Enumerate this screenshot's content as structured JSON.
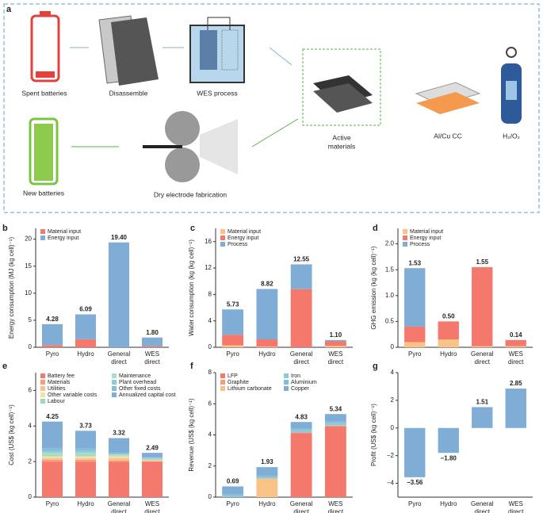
{
  "diagram": {
    "panel": "a",
    "spent": "Spent batteries",
    "disassemble": "Disassemble",
    "wes": "WES process",
    "active": [
      "Active",
      "materials"
    ],
    "cc": "Al/Cu CC",
    "gas": "H₂/O₂",
    "new": "New batteries",
    "dry": "Dry electrode fabrication"
  },
  "chart_data": [
    {
      "type": "bar",
      "stacked": true,
      "panel": "b",
      "ylabel": "Energy consumption (MJ (kg cell)⁻¹)",
      "categories": [
        "Pyro",
        "Hydro",
        "General direct",
        "WES direct"
      ],
      "ylim": [
        0,
        22
      ],
      "yticks": [
        0,
        5,
        10,
        15,
        20
      ],
      "series": [
        {
          "name": "Material input",
          "color": "#f4786b",
          "values": [
            0.4,
            1.5,
            0,
            0.2
          ]
        },
        {
          "name": "Energy input",
          "color": "#7fadd6",
          "values": [
            3.88,
            4.59,
            19.4,
            1.6
          ]
        }
      ],
      "totals": [
        4.28,
        6.09,
        19.4,
        1.8
      ],
      "total_labels": [
        "4.28",
        "6.09",
        "19.40",
        "1.80"
      ]
    },
    {
      "type": "bar",
      "stacked": true,
      "panel": "c",
      "ylabel": "Water consumption (kg (kg cell)⁻¹)",
      "categories": [
        "Pyro",
        "Hydro",
        "General direct",
        "WES direct"
      ],
      "ylim": [
        0,
        18
      ],
      "yticks": [
        0,
        4,
        8,
        12,
        16
      ],
      "series": [
        {
          "name": "Material input",
          "color": "#f9c287",
          "values": [
            0.3,
            0.1,
            0,
            0.2
          ]
        },
        {
          "name": "Energy input",
          "color": "#f4786b",
          "values": [
            1.6,
            1.1,
            8.8,
            0.7
          ]
        },
        {
          "name": "Process",
          "color": "#7fadd6",
          "values": [
            3.83,
            7.62,
            3.75,
            0.2
          ]
        }
      ],
      "totals": [
        5.73,
        8.82,
        12.55,
        1.1
      ],
      "total_labels": [
        "5.73",
        "8.82",
        "12.55",
        "1.10"
      ]
    },
    {
      "type": "bar",
      "stacked": true,
      "panel": "d",
      "ylabel": "GHG emission (kg (kg cell)⁻¹)",
      "categories": [
        "Pyro",
        "Hydro",
        "General direct",
        "WES direct"
      ],
      "ylim": [
        0,
        2.3
      ],
      "yticks": [
        0,
        0.5,
        {
          "value": 1,
          "label": "1.0"
        },
        1.5,
        {
          "value": 2,
          "label": "2.0"
        }
      ],
      "series": [
        {
          "name": "Material input",
          "color": "#f9c287",
          "values": [
            0.1,
            0.15,
            0.02,
            0.02
          ]
        },
        {
          "name": "Energy input",
          "color": "#f4786b",
          "values": [
            0.3,
            0.35,
            1.53,
            0.12
          ]
        },
        {
          "name": "Process",
          "color": "#7fadd6",
          "values": [
            1.13,
            0,
            0,
            0
          ]
        }
      ],
      "totals": [
        1.53,
        0.5,
        1.55,
        0.14
      ],
      "total_labels": [
        "1.53",
        "0.50",
        "1.55",
        "0.14"
      ]
    },
    {
      "type": "bar",
      "stacked": true,
      "panel": "e",
      "ylabel": "Cost (US$ (kg cell)⁻¹)",
      "categories": [
        "Pyro",
        "Hydro",
        "General direct",
        "WES direct"
      ],
      "ylim": [
        0,
        7
      ],
      "yticks": [
        0,
        2,
        4,
        6
      ],
      "series": [
        {
          "name": "Battery fee",
          "color": "#f4786b",
          "values": [
            2.0,
            2.0,
            2.0,
            2.0
          ]
        },
        {
          "name": "Materials",
          "color": "#f79c7e",
          "values": [
            0.1,
            0.1,
            0.05,
            0.02
          ]
        },
        {
          "name": "Utilities",
          "color": "#f9c287",
          "values": [
            0.1,
            0.1,
            0.15,
            0.05
          ]
        },
        {
          "name": "Other variable costs",
          "color": "#f3e2a6",
          "values": [
            0.1,
            0.1,
            0.1,
            0.02
          ]
        },
        {
          "name": "Labour",
          "color": "#9fd8c0",
          "values": [
            0.1,
            0.1,
            0.05,
            0.05
          ]
        },
        {
          "name": "Maintenance",
          "color": "#a9dcd3",
          "values": [
            0.1,
            0.1,
            0.05,
            0.03
          ]
        },
        {
          "name": "Plant overhead",
          "color": "#8dccd6",
          "values": [
            0.1,
            0.1,
            0.05,
            0.03
          ]
        },
        {
          "name": "Other fixed costs",
          "color": "#84bcd9",
          "values": [
            0.15,
            0.13,
            0.07,
            0.04
          ]
        },
        {
          "name": "Annualized capital cost",
          "color": "#7fadd6",
          "values": [
            1.5,
            1.0,
            0.8,
            0.25
          ]
        }
      ],
      "totals": [
        4.25,
        3.73,
        3.32,
        2.49
      ],
      "total_labels": [
        "4.25",
        "3.73",
        "3.32",
        "2.49"
      ]
    },
    {
      "type": "bar",
      "stacked": true,
      "panel": "f",
      "ylabel": "Revenue (US$ (kg cell)⁻¹)",
      "categories": [
        "Pyro",
        "Hydro",
        "General direct",
        "WES direct"
      ],
      "ylim": [
        0,
        8
      ],
      "yticks": [
        0,
        2,
        4,
        6,
        8
      ],
      "series": [
        {
          "name": "LFP",
          "color": "#f4786b",
          "values": [
            0,
            0,
            4.1,
            4.55
          ]
        },
        {
          "name": "Graphite",
          "color": "#f79c7e",
          "values": [
            0,
            0,
            0.05,
            0.05
          ]
        },
        {
          "name": "Lithium carbonate",
          "color": "#f9c287",
          "values": [
            0,
            1.2,
            0,
            0
          ]
        },
        {
          "name": "Iron",
          "color": "#8dccd6",
          "values": [
            0.1,
            0.1,
            0.15,
            0.15
          ]
        },
        {
          "name": "Aluminium",
          "color": "#84bcd9",
          "values": [
            0.1,
            0.1,
            0.1,
            0.1
          ]
        },
        {
          "name": "Copper",
          "color": "#7fadd6",
          "values": [
            0.49,
            0.53,
            0.43,
            0.49
          ]
        }
      ],
      "totals": [
        0.69,
        1.93,
        4.83,
        5.34
      ],
      "total_labels": [
        "0.69",
        "1.93",
        "4.83",
        "5.34"
      ]
    },
    {
      "type": "bar",
      "panel": "g",
      "ylabel": "Profit (US$ (kg cell)⁻¹)",
      "categories": [
        "Pyro",
        "Hydro",
        "General direct",
        "WES direct"
      ],
      "ylim": [
        -5,
        4
      ],
      "yticks": [
        {
          "value": -4,
          "label": "−4"
        },
        {
          "value": -2,
          "label": "−2"
        },
        0,
        2,
        4
      ],
      "color": "#7fadd6",
      "values": [
        -3.56,
        -1.8,
        1.51,
        2.85
      ],
      "value_labels": [
        "−3.56",
        "−1.80",
        "1.51",
        "2.85"
      ]
    }
  ]
}
